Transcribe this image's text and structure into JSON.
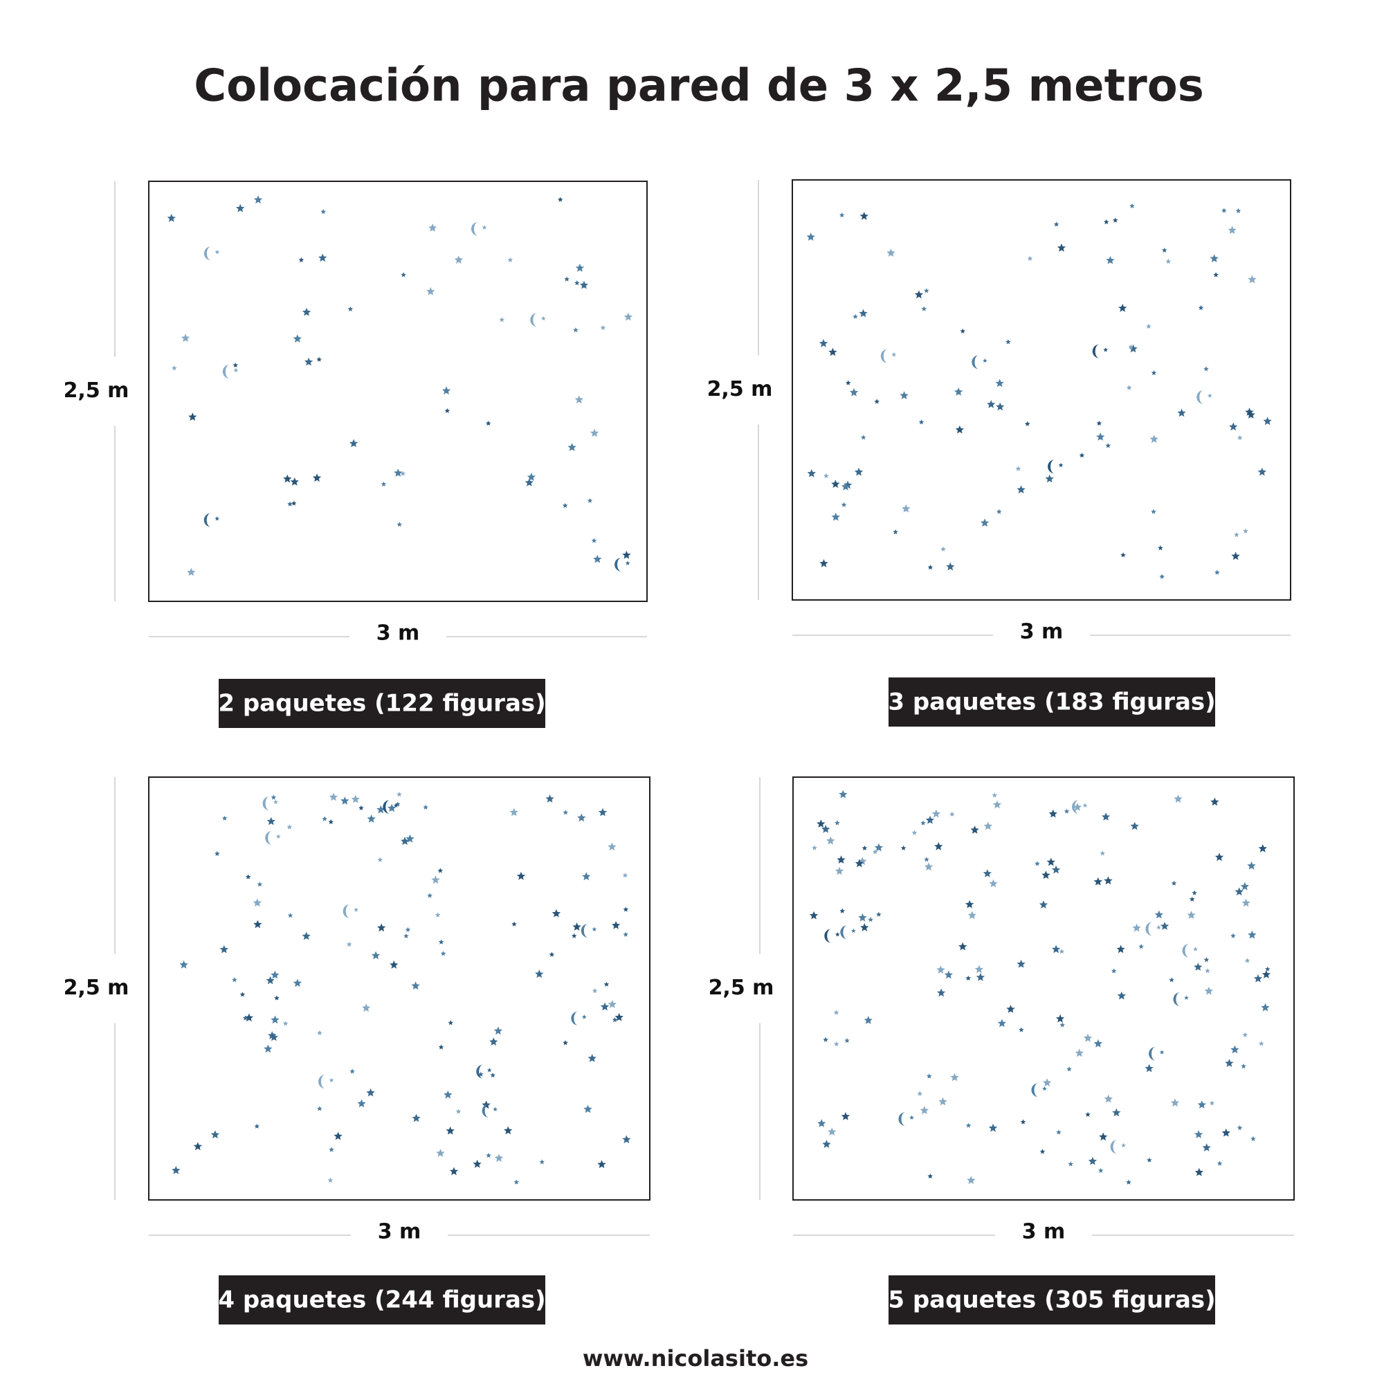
{
  "title": "Colocación para pared de 3 x 2,5 metros",
  "panels": [
    {
      "height_label": "2,5 m",
      "width_label": "3 m",
      "caption": "2 paquetes (122 figuras)"
    },
    {
      "height_label": "2,5 m",
      "width_label": "3 m",
      "caption": "3 paquetes (183 figuras)"
    },
    {
      "height_label": "2,5 m",
      "width_label": "3 m",
      "caption": "4 paquetes (244 figuras)"
    },
    {
      "height_label": "2,5 m",
      "width_label": "3 m",
      "caption": "5 paquetes (305 figuras)"
    }
  ],
  "footer": "www.nicolasito.es"
}
